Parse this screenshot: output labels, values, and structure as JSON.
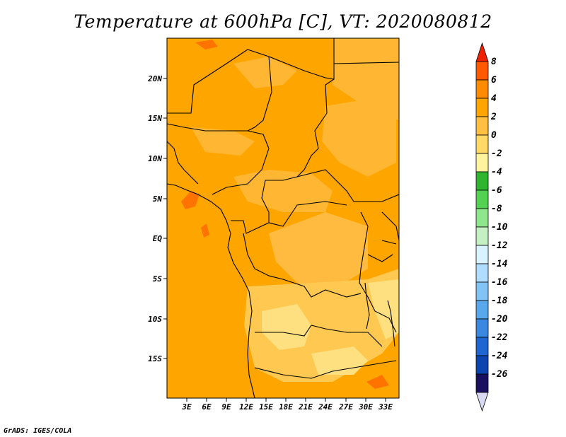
{
  "title": "Temperature at 600hPa [C], VT: 2020080812",
  "credit": "GrADS: IGES/COLA",
  "map": {
    "lat_labels": [
      "20N",
      "15N",
      "10N",
      "5N",
      "EQ",
      "5S",
      "10S",
      "15S"
    ],
    "lon_labels": [
      "3E",
      "6E",
      "9E",
      "12E",
      "15E",
      "18E",
      "21E",
      "24E",
      "27E",
      "30E",
      "33E"
    ]
  },
  "colorbar": {
    "labels": [
      "8",
      "6",
      "4",
      "2",
      "0",
      "-2",
      "-4",
      "-6",
      "-8",
      "-10",
      "-12",
      "-14",
      "-16",
      "-18",
      "-20",
      "-22",
      "-24",
      "-26"
    ],
    "colors": [
      "#ee2200",
      "#ff5a00",
      "#ff8c00",
      "#ffa500",
      "#ffbf40",
      "#ffd966",
      "#fff3a0",
      "#2fb52f",
      "#52d152",
      "#8ee68e",
      "#c4f0c4",
      "#d8f2ff",
      "#b0dcff",
      "#82c3f5",
      "#5aa8ec",
      "#3a88e0",
      "#1f66d0",
      "#0d45b0",
      "#1a1060",
      "#d9d9f2"
    ]
  }
}
